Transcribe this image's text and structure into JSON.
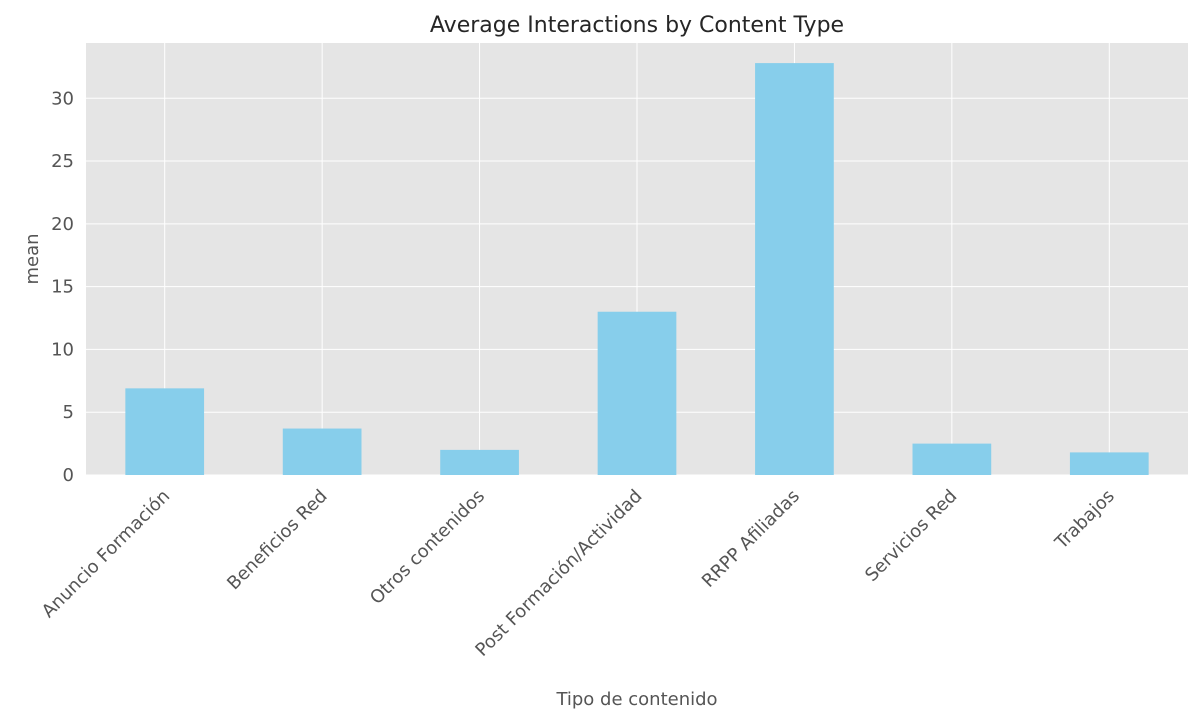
{
  "chart_data": {
    "type": "bar",
    "title": "Average Interactions by Content Type",
    "xlabel": "Tipo de contenido",
    "ylabel": "mean",
    "categories": [
      "Anuncio Formación",
      "Beneficios Red",
      "Otros contenidos",
      "Post Formación/Actividad",
      "RRPP Afiliadas",
      "Servicios Red",
      "Trabajos"
    ],
    "values": [
      6.9,
      3.7,
      2.0,
      13.0,
      32.8,
      2.5,
      1.8
    ],
    "ylim": [
      0,
      34.4
    ],
    "yticks": [
      0,
      5,
      10,
      15,
      20,
      25,
      30
    ],
    "grid": true,
    "bar_color": "#87ceeb",
    "background_color": "#e5e5e5",
    "grid_color": "#ffffff"
  }
}
